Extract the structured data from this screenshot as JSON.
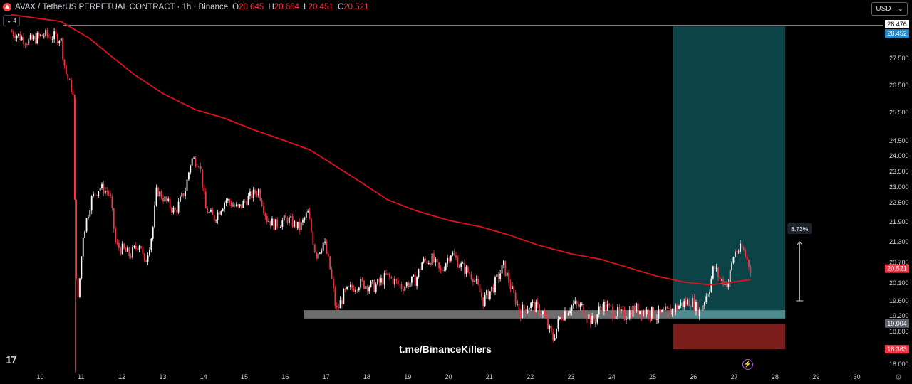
{
  "header": {
    "symbol": "AVAX / TetherUS PERPETUAL CONTRACT · 1h · Binance",
    "open_label": "O",
    "open": "20.645",
    "high_label": "H",
    "high": "20.664",
    "low_label": "L",
    "low": "20.451",
    "close_label": "C",
    "close": "20.521"
  },
  "indicator_count": "4",
  "currency": "USDT",
  "watermark": "t.me/BinanceKillers",
  "colors": {
    "up": "#ffffff",
    "down": "#f23645",
    "ma": "#e0101c",
    "target_zone": "#0c4a4e",
    "stop_zone": "#7a1d1b",
    "support": "#808080",
    "last_price": "#f23645",
    "level_tag": "#1e7b94"
  },
  "chart_data": {
    "type": "candlestick",
    "timeframe": "1h",
    "x_ticks": [
      "10",
      "11",
      "12",
      "13",
      "14",
      "15",
      "16",
      "17",
      "18",
      "19",
      "20",
      "21",
      "22",
      "23",
      "24",
      "25",
      "26",
      "27",
      "28",
      "29",
      "30"
    ],
    "y_ticks": [
      "28.476",
      "27.500",
      "26.500",
      "25.500",
      "24.500",
      "24.000",
      "23.500",
      "23.000",
      "22.500",
      "21.900",
      "21.300",
      "20.700",
      "20.100",
      "19.600",
      "19.200",
      "18.800",
      "18.000"
    ],
    "price_path": [
      [
        9.3,
        28.3
      ],
      [
        9.7,
        28.0
      ],
      [
        10.1,
        28.2
      ],
      [
        10.5,
        28.1
      ],
      [
        10.62,
        27.0
      ],
      [
        10.8,
        26.2
      ],
      [
        10.86,
        21.0
      ],
      [
        10.92,
        19.5
      ],
      [
        11.05,
        21.5
      ],
      [
        11.25,
        22.6
      ],
      [
        11.45,
        23.0
      ],
      [
        11.7,
        22.8
      ],
      [
        11.85,
        21.2
      ],
      [
        12.1,
        21.0
      ],
      [
        12.2,
        20.9
      ],
      [
        12.45,
        21.3
      ],
      [
        12.55,
        20.6
      ],
      [
        12.75,
        21.6
      ],
      [
        12.85,
        22.9
      ],
      [
        13.05,
        22.6
      ],
      [
        13.3,
        22.2
      ],
      [
        13.55,
        22.9
      ],
      [
        13.7,
        23.9
      ],
      [
        13.9,
        23.8
      ],
      [
        14.05,
        22.3
      ],
      [
        14.25,
        22.0
      ],
      [
        14.55,
        22.6
      ],
      [
        14.85,
        22.3
      ],
      [
        15.05,
        22.6
      ],
      [
        15.35,
        22.9
      ],
      [
        15.55,
        22.0
      ],
      [
        15.75,
        21.8
      ],
      [
        16.05,
        22.0
      ],
      [
        16.35,
        21.7
      ],
      [
        16.55,
        22.2
      ],
      [
        16.75,
        20.9
      ],
      [
        16.95,
        21.3
      ],
      [
        17.1,
        20.5
      ],
      [
        17.25,
        19.3
      ],
      [
        17.45,
        19.8
      ],
      [
        17.8,
        20.1
      ],
      [
        18.2,
        20.0
      ],
      [
        18.5,
        20.3
      ],
      [
        18.85,
        20.0
      ],
      [
        19.2,
        20.2
      ],
      [
        19.35,
        20.7
      ],
      [
        19.6,
        20.8
      ],
      [
        19.8,
        20.4
      ],
      [
        20.05,
        21.0
      ],
      [
        20.3,
        20.6
      ],
      [
        20.6,
        20.3
      ],
      [
        20.85,
        19.6
      ],
      [
        21.1,
        20.0
      ],
      [
        21.35,
        20.6
      ],
      [
        21.55,
        19.9
      ],
      [
        21.75,
        19.3
      ],
      [
        22.0,
        19.5
      ],
      [
        22.3,
        19.3
      ],
      [
        22.55,
        18.6
      ],
      [
        22.75,
        19.2
      ],
      [
        23.05,
        19.5
      ],
      [
        23.3,
        19.4
      ],
      [
        23.55,
        19.0
      ],
      [
        23.75,
        19.5
      ],
      [
        24.05,
        19.3
      ],
      [
        24.3,
        19.2
      ],
      [
        24.55,
        19.4
      ],
      [
        24.9,
        19.3
      ],
      [
        25.1,
        19.2
      ],
      [
        25.4,
        19.3
      ],
      [
        25.7,
        19.5
      ],
      [
        25.95,
        19.6
      ],
      [
        26.15,
        19.3
      ],
      [
        26.4,
        20.0
      ],
      [
        26.5,
        20.6
      ],
      [
        26.65,
        20.2
      ],
      [
        26.85,
        20.1
      ],
      [
        27.0,
        21.0
      ],
      [
        27.2,
        21.1
      ],
      [
        27.4,
        20.52
      ]
    ],
    "moving_average_path": [
      [
        9.3,
        28.8
      ],
      [
        10.5,
        28.6
      ],
      [
        11.2,
        28.1
      ],
      [
        11.7,
        27.6
      ],
      [
        12.3,
        26.9
      ],
      [
        13.0,
        26.2
      ],
      [
        13.8,
        25.6
      ],
      [
        14.5,
        25.3
      ],
      [
        15.2,
        24.9
      ],
      [
        16.0,
        24.5
      ],
      [
        16.6,
        24.2
      ],
      [
        17.2,
        23.7
      ],
      [
        17.8,
        23.2
      ],
      [
        18.5,
        22.6
      ],
      [
        19.2,
        22.25
      ],
      [
        20.0,
        21.95
      ],
      [
        20.8,
        21.75
      ],
      [
        21.5,
        21.5
      ],
      [
        22.2,
        21.2
      ],
      [
        23.0,
        20.95
      ],
      [
        23.7,
        20.8
      ],
      [
        24.4,
        20.55
      ],
      [
        25.1,
        20.3
      ],
      [
        25.8,
        20.12
      ],
      [
        26.4,
        20.05
      ],
      [
        26.8,
        20.1
      ],
      [
        27.4,
        20.2
      ]
    ],
    "horizontal_line": {
      "price": 28.476,
      "x_from": 10.55
    },
    "support_zone": {
      "x_from": 16.45,
      "x_to": 25.5,
      "y_from": 19.13,
      "y_to": 19.35
    },
    "position": {
      "type": "long",
      "x_from": 25.5,
      "x_to": 28.25,
      "entry": 19.004,
      "target": 28.452,
      "stop": 18.363,
      "entry_zone_y": 19.35
    },
    "measure": {
      "x": 28.6,
      "from": 19.6,
      "to": 21.3,
      "label": "8.73%"
    },
    "price_tags": [
      {
        "value": "28.476",
        "style": "white"
      },
      {
        "value": "28.452",
        "style": "blue"
      },
      {
        "value": "20.521",
        "style": "red"
      },
      {
        "value": "19.004",
        "style": "gray"
      },
      {
        "value": "18.363",
        "style": "red"
      }
    ]
  }
}
